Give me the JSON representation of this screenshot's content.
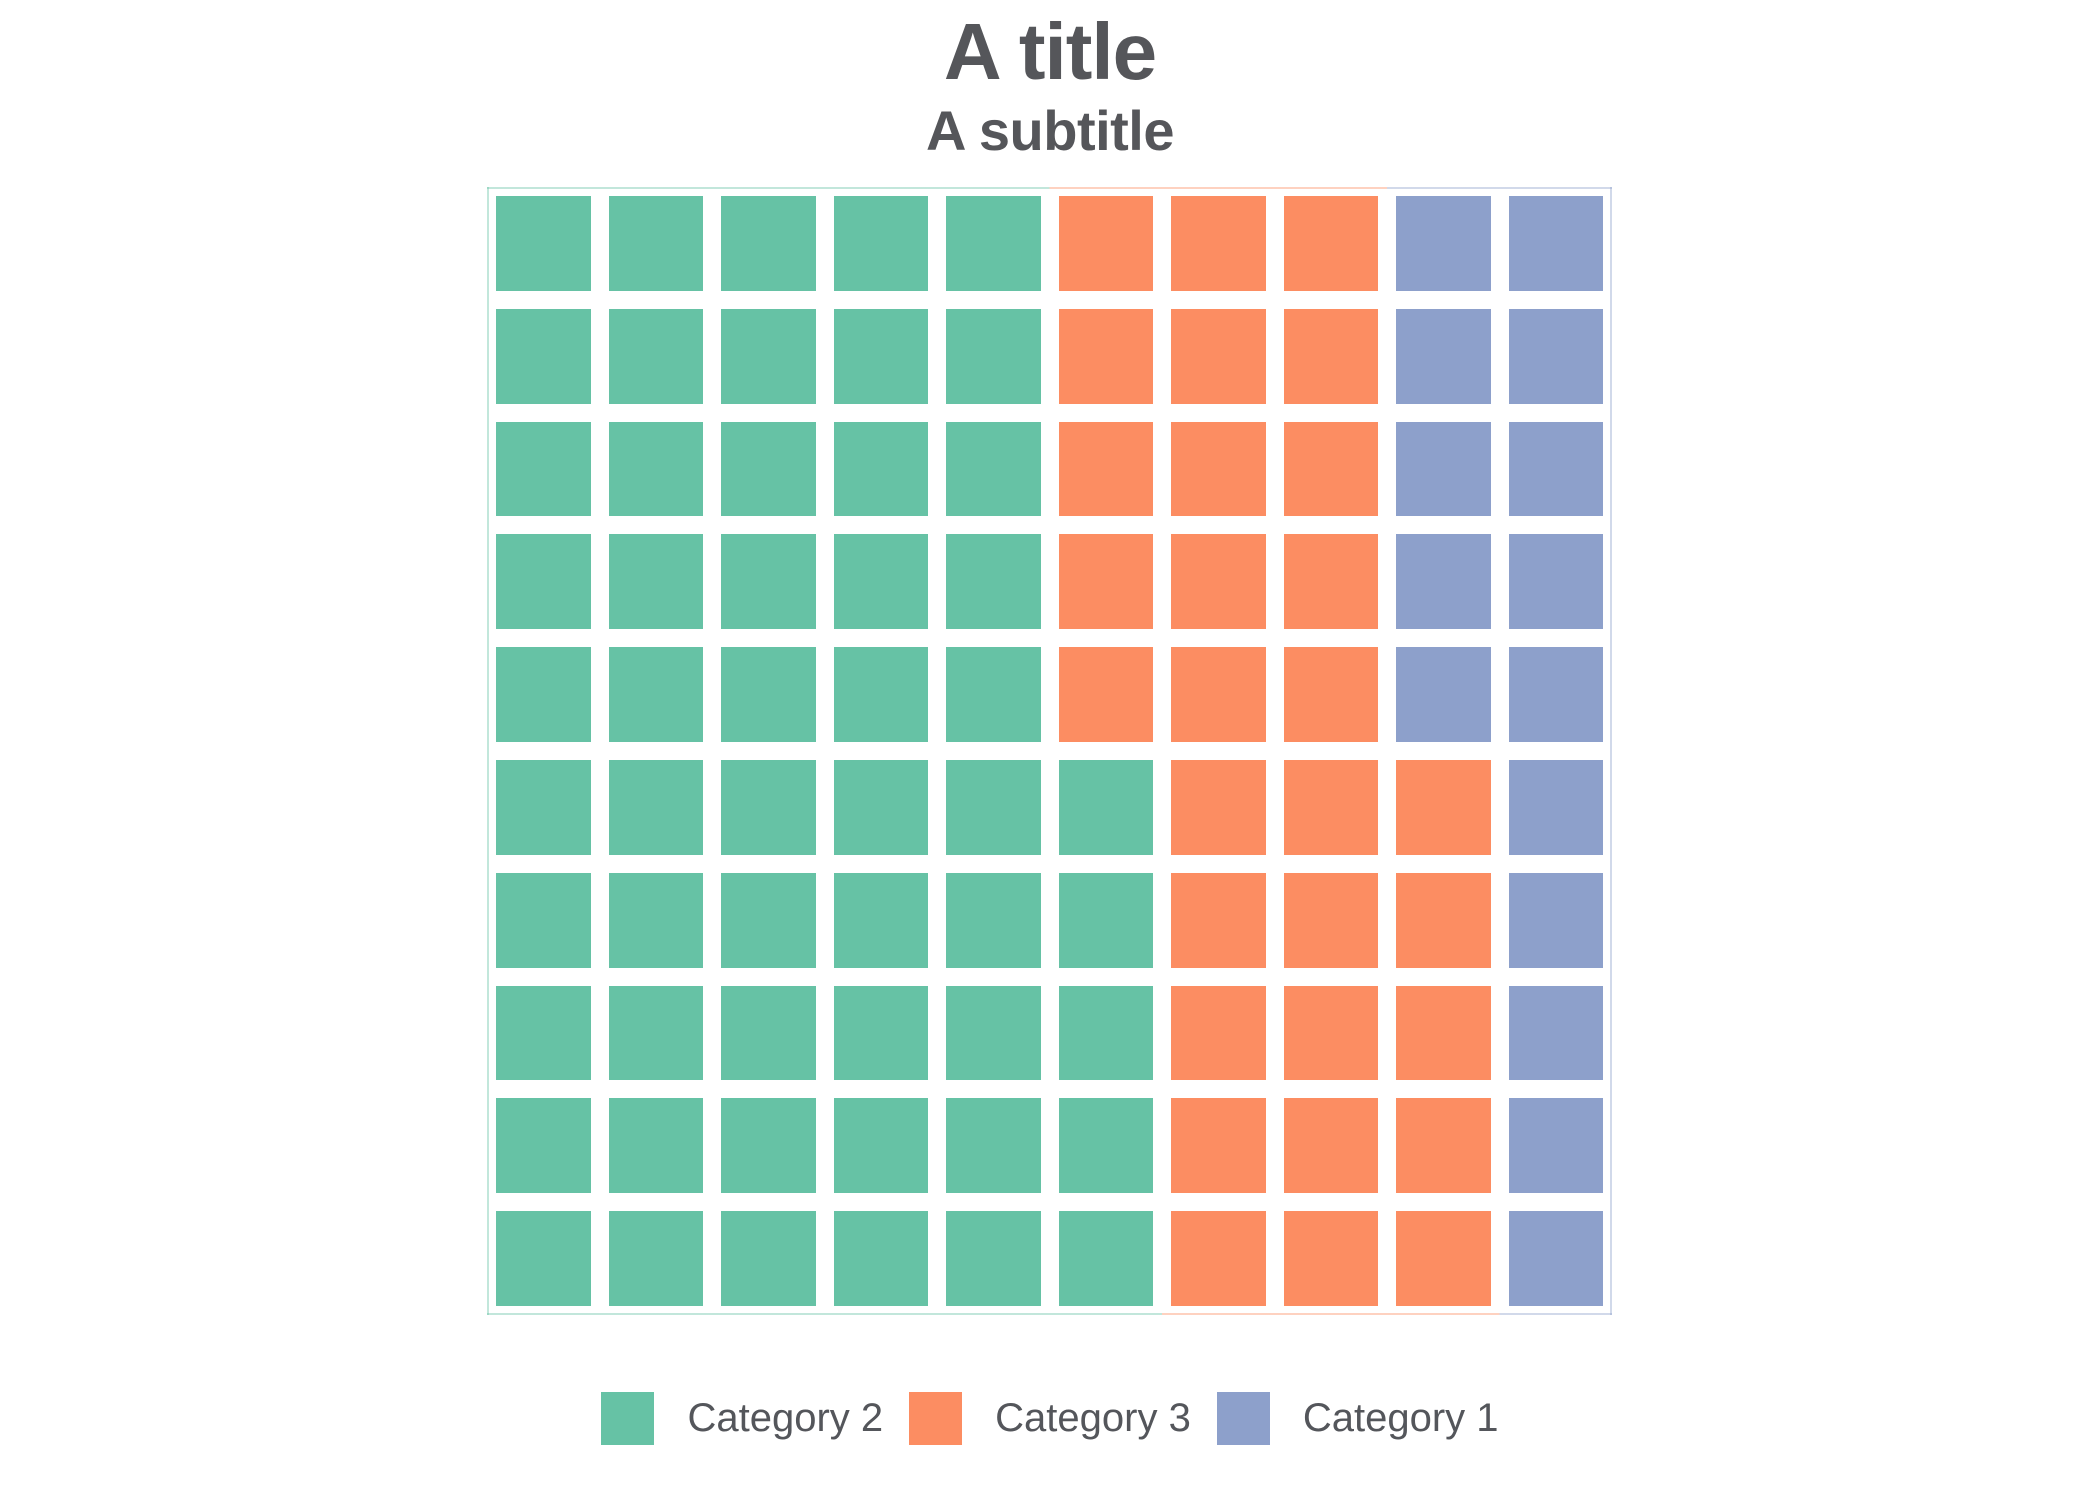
{
  "chart_data": {
    "type": "pie",
    "variant": "waffle",
    "title": "A title",
    "subtitle": "A subtitle",
    "grid": {
      "rows": 10,
      "columns": 10,
      "total_cells": 100
    },
    "series": [
      {
        "name": "Category 2",
        "value": 55,
        "color": "#66C2A5"
      },
      {
        "name": "Category 3",
        "value": 30,
        "color": "#FC8D62"
      },
      {
        "name": "Category 1",
        "value": 15,
        "color": "#8DA0CB"
      }
    ],
    "row_layout_note": "cells per row, left to right, counts listed in series order",
    "row_layout": [
      [
        5,
        3,
        2
      ],
      [
        5,
        3,
        2
      ],
      [
        5,
        3,
        2
      ],
      [
        5,
        3,
        2
      ],
      [
        5,
        3,
        2
      ],
      [
        6,
        3,
        1
      ],
      [
        6,
        3,
        1
      ],
      [
        6,
        3,
        1
      ],
      [
        6,
        3,
        1
      ],
      [
        6,
        3,
        1
      ]
    ],
    "legend": {
      "position": "bottom",
      "order": [
        "Category 2",
        "Category 3",
        "Category 1"
      ]
    }
  },
  "styles": {
    "title_color": "#55565A",
    "subtitle_color": "#55565A",
    "legend_text_color": "#54565B",
    "background": "#FFFFFF",
    "panel_edge_alpha": 0.4
  }
}
